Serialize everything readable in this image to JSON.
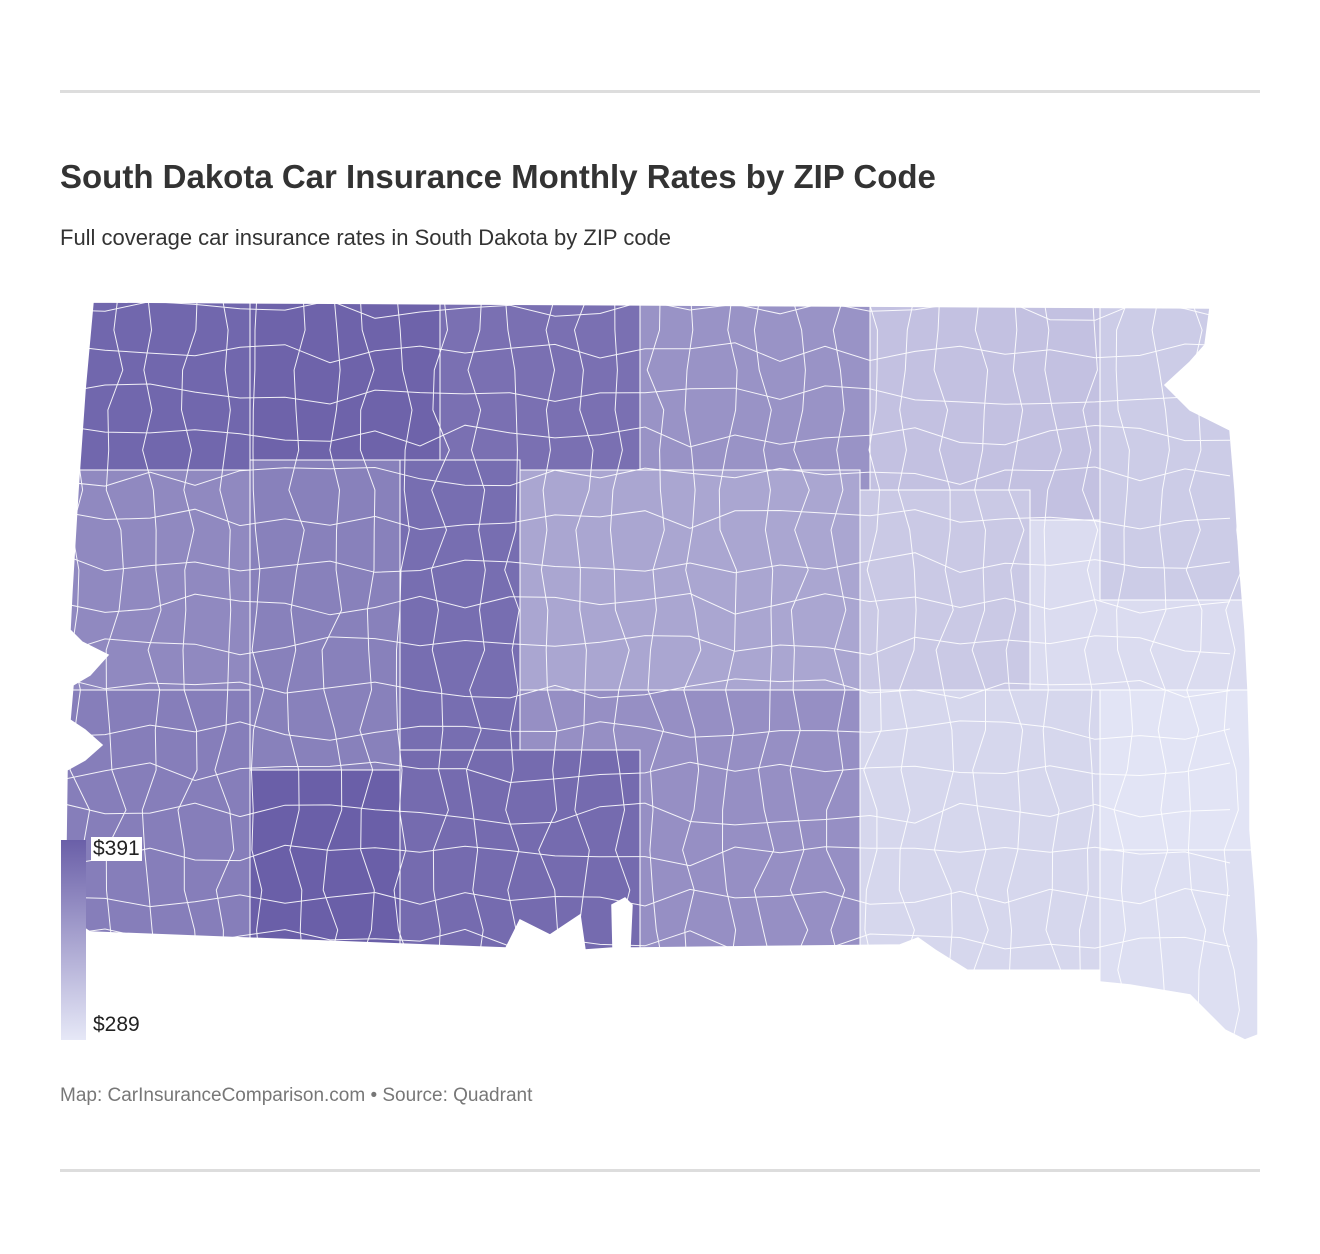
{
  "header": {
    "title": "South Dakota Car Insurance Monthly Rates by ZIP Code",
    "subtitle": "Full coverage car insurance rates in South Dakota by ZIP code"
  },
  "legend": {
    "max_label": "$391",
    "min_label": "$289",
    "max_color": "#6a5fa8",
    "min_color": "#e6e8f7"
  },
  "footer": {
    "credit": "Map: CarInsuranceComparison.com • Source: Quadrant"
  },
  "map_data": {
    "region": "South Dakota",
    "unit": "monthly rate (USD)",
    "value_range": [
      289,
      391
    ],
    "regions": [
      {
        "area": "northwest",
        "value": 385
      },
      {
        "area": "north-central-west",
        "value": 388
      },
      {
        "area": "north-central",
        "value": 378
      },
      {
        "area": "north-east-central",
        "value": 352
      },
      {
        "area": "northeast",
        "value": 318
      },
      {
        "area": "far-northeast",
        "value": 310
      },
      {
        "area": "west-central",
        "value": 360
      },
      {
        "area": "central-west",
        "value": 366
      },
      {
        "area": "central",
        "value": 380
      },
      {
        "area": "central-east",
        "value": 338
      },
      {
        "area": "east-central",
        "value": 312
      },
      {
        "area": "east",
        "value": 298
      },
      {
        "area": "far-east",
        "value": 292
      },
      {
        "area": "southwest",
        "value": 368
      },
      {
        "area": "south-central-west",
        "value": 391
      },
      {
        "area": "south-central",
        "value": 382
      },
      {
        "area": "south-central-east",
        "value": 355
      },
      {
        "area": "southeast",
        "value": 302
      },
      {
        "area": "far-southeast",
        "value": 296
      }
    ]
  }
}
